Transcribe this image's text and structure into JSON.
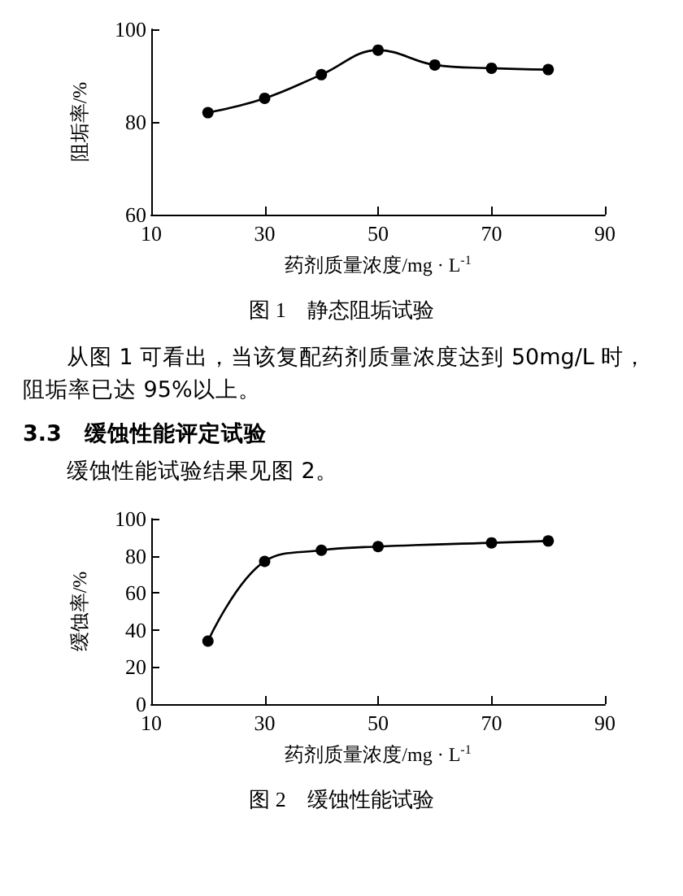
{
  "chart_data": [
    {
      "type": "line",
      "title": "图 1　静态阻垢试验",
      "xlabel": "药剂质量浓度/mg · L$^{-1}$",
      "ylabel": "阻垢率/%",
      "x": [
        20,
        30,
        40,
        50,
        60,
        70,
        80
      ],
      "series": [
        {
          "color": "#000000",
          "values": [
            82.0,
            85.1,
            90.2,
            95.5,
            92.3,
            91.6,
            91.3
          ]
        }
      ],
      "xlim": [
        10,
        90
      ],
      "xticks": [
        10,
        30,
        50,
        70,
        90
      ],
      "ylim": [
        60,
        100
      ],
      "yticks": [
        60,
        80,
        100
      ],
      "marker": "circle",
      "line_style": "solid",
      "annotations": [
        "从图 1 可看出，当该复配药剂质量浓度达到 50mg/L 时，阻垢率已达 95%以上。"
      ]
    },
    {
      "type": "line",
      "title": "图 2　缓蚀性能试验",
      "xlabel": "药剂质量浓度/mg · L$^{-1}$",
      "ylabel": "缓蚀率/%",
      "x": [
        20,
        30,
        40,
        50,
        70,
        80
      ],
      "series": [
        {
          "color": "#000000",
          "values": [
            34,
            77,
            83,
            85,
            87,
            88
          ]
        }
      ],
      "xlim": [
        10,
        90
      ],
      "xticks": [
        10,
        30,
        50,
        70,
        90
      ],
      "ylim": [
        0,
        100
      ],
      "yticks": [
        0,
        20,
        40,
        60,
        80,
        100
      ],
      "marker": "circle",
      "line_style": "solid",
      "annotations": [
        "3.3　缓蚀性能评定试验",
        "缓蚀性能试验结果见图 2。"
      ]
    }
  ]
}
